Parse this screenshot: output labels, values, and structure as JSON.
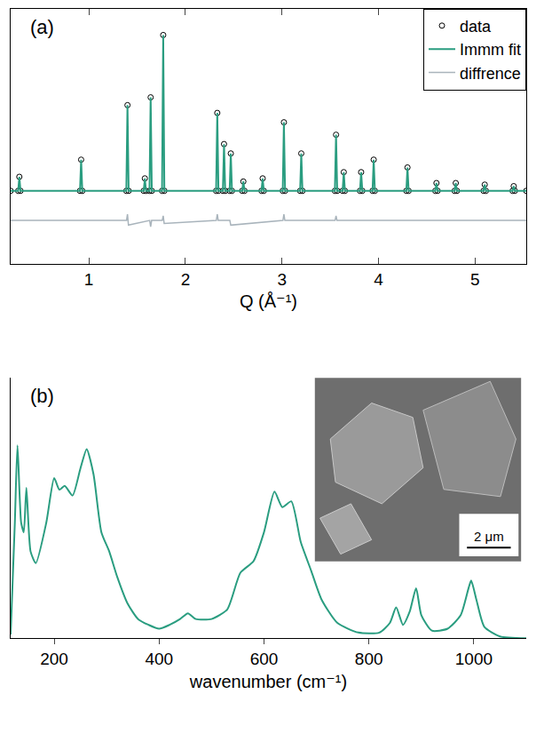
{
  "chart_data": [
    {
      "type": "scatter",
      "label": "(a)",
      "x_label": "Q (Å⁻¹)",
      "xlim": [
        0.19,
        5.53
      ],
      "xticks": [
        1,
        2,
        3,
        4,
        5
      ],
      "ylim": [
        -0.47,
        1.17
      ],
      "tick_labels": "x",
      "legend": "top right",
      "series": [
        {
          "name": "data",
          "type": "scatter",
          "marker": "open circle",
          "color": "#000000",
          "x": [
            0.19,
            0.268,
            0.28,
            0.292,
            0.908,
            0.92,
            0.932,
            1.388,
            1.4,
            1.412,
            1.568,
            1.58,
            1.592,
            1.628,
            1.64,
            1.652,
            1.758,
            1.77,
            1.782,
            2.318,
            2.33,
            2.342,
            2.388,
            2.4,
            2.412,
            2.458,
            2.47,
            2.482,
            2.588,
            2.6,
            2.612,
            2.788,
            2.8,
            2.812,
            3.008,
            3.02,
            3.032,
            3.188,
            3.2,
            3.212,
            3.548,
            3.56,
            3.572,
            3.628,
            3.64,
            3.652,
            3.808,
            3.82,
            3.832,
            3.938,
            3.95,
            3.962,
            4.288,
            4.3,
            4.312,
            4.588,
            4.6,
            4.612,
            4.788,
            4.8,
            4.812,
            5.088,
            5.1,
            5.112,
            5.388,
            5.4,
            5.412,
            5.53
          ],
          "values": [
            0,
            0,
            0.09,
            0,
            0,
            0.2,
            0,
            0,
            0.55,
            0,
            0,
            0.08,
            0,
            0,
            0.6,
            0,
            0,
            1.0,
            0,
            0,
            0.5,
            0,
            0,
            0.3,
            0,
            0,
            0.24,
            0,
            0,
            0.06,
            0,
            0,
            0.08,
            0,
            0,
            0.44,
            0,
            0,
            0.24,
            0,
            0,
            0.36,
            0,
            0,
            0.12,
            0,
            0,
            0.12,
            0,
            0,
            0.2,
            0,
            0,
            0.15,
            0,
            0,
            0.05,
            0,
            0,
            0.05,
            0,
            0,
            0.04,
            0,
            0,
            0.03,
            0,
            0
          ]
        },
        {
          "name": "Immm fit",
          "type": "line",
          "line_style": "solid",
          "color": "#2a9d80",
          "x": [
            0.19,
            0.268,
            0.28,
            0.292,
            0.908,
            0.92,
            0.932,
            1.388,
            1.4,
            1.412,
            1.568,
            1.58,
            1.592,
            1.628,
            1.64,
            1.652,
            1.758,
            1.77,
            1.782,
            2.318,
            2.33,
            2.342,
            2.388,
            2.4,
            2.412,
            2.458,
            2.47,
            2.482,
            2.588,
            2.6,
            2.612,
            2.788,
            2.8,
            2.812,
            3.008,
            3.02,
            3.032,
            3.188,
            3.2,
            3.212,
            3.548,
            3.56,
            3.572,
            3.628,
            3.64,
            3.652,
            3.808,
            3.82,
            3.832,
            3.938,
            3.95,
            3.962,
            4.288,
            4.3,
            4.312,
            4.588,
            4.6,
            4.612,
            4.788,
            4.8,
            4.812,
            5.088,
            5.1,
            5.112,
            5.388,
            5.4,
            5.412,
            5.53
          ],
          "values": [
            0,
            0,
            0.09,
            0,
            0,
            0.2,
            0,
            0,
            0.55,
            0,
            0,
            0.08,
            0,
            0,
            0.6,
            0,
            0,
            1.0,
            0,
            0,
            0.5,
            0,
            0,
            0.3,
            0,
            0,
            0.24,
            0,
            0,
            0.06,
            0,
            0,
            0.08,
            0,
            0,
            0.44,
            0,
            0,
            0.24,
            0,
            0,
            0.36,
            0,
            0,
            0.12,
            0,
            0,
            0.12,
            0,
            0,
            0.2,
            0,
            0,
            0.15,
            0,
            0,
            0.05,
            0,
            0,
            0.05,
            0,
            0,
            0.04,
            0,
            0,
            0.03,
            0,
            0
          ]
        },
        {
          "name": "diffrence",
          "type": "line",
          "line_style": "solid",
          "color": "#a9b4bc",
          "x": [
            0.19,
            1.39,
            1.4,
            1.41,
            1.63,
            1.64,
            1.65,
            1.76,
            1.77,
            1.78,
            2.32,
            2.33,
            2.34,
            2.46,
            2.47,
            3.01,
            3.02,
            3.03,
            3.55,
            3.56,
            3.57,
            5.53
          ],
          "values": [
            -0.19,
            -0.19,
            -0.15,
            -0.22,
            -0.19,
            -0.23,
            -0.19,
            -0.19,
            -0.16,
            -0.21,
            -0.19,
            -0.15,
            -0.19,
            -0.19,
            -0.22,
            -0.19,
            -0.15,
            -0.19,
            -0.19,
            -0.16,
            -0.19,
            -0.19
          ]
        }
      ]
    },
    {
      "type": "line",
      "label": "(b)",
      "x_label": "wavenumber (cm⁻¹)",
      "xlim": [
        117,
        1100
      ],
      "xticks": [
        200,
        400,
        600,
        800,
        1000
      ],
      "ylim": [
        0,
        1.35
      ],
      "tick_labels": "x",
      "color": "#2a9d80",
      "x": [
        117,
        125,
        130,
        137,
        142,
        147,
        155,
        165,
        185,
        200,
        210,
        220,
        235,
        250,
        262,
        275,
        290,
        305,
        320,
        340,
        360,
        380,
        400,
        420,
        440,
        455,
        470,
        500,
        530,
        555,
        580,
        600,
        620,
        635,
        652,
        670,
        690,
        710,
        740,
        780,
        820,
        840,
        852,
        865,
        878,
        890,
        900,
        920,
        950,
        975,
        990,
        995,
        1005,
        1020,
        1050,
        1100
      ],
      "values": [
        0.02,
        0.6,
        1.0,
        0.6,
        0.55,
        0.78,
        0.45,
        0.39,
        0.6,
        0.83,
        0.77,
        0.79,
        0.74,
        0.88,
        0.98,
        0.85,
        0.55,
        0.45,
        0.32,
        0.18,
        0.1,
        0.07,
        0.05,
        0.07,
        0.1,
        0.13,
        0.1,
        0.1,
        0.15,
        0.34,
        0.4,
        0.55,
        0.76,
        0.68,
        0.71,
        0.5,
        0.35,
        0.2,
        0.08,
        0.03,
        0.03,
        0.08,
        0.16,
        0.07,
        0.14,
        0.26,
        0.12,
        0.04,
        0.05,
        0.12,
        0.26,
        0.3,
        0.2,
        0.06,
        0.01,
        0.0
      ],
      "inset": {
        "scale_bar": "2 μm"
      }
    }
  ]
}
